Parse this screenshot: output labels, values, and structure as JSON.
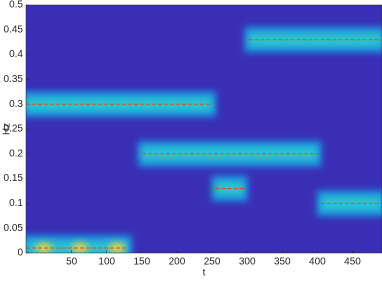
{
  "chart_data": {
    "type": "line",
    "x_label": "t",
    "y_label": "Hz",
    "xlim": [
      -15,
      492
    ],
    "ylim": [
      0,
      0.5
    ],
    "xticks": [
      50,
      100,
      150,
      200,
      250,
      300,
      350,
      400,
      450
    ],
    "yticks": [
      0,
      0.05,
      0.1,
      0.15,
      0.2,
      0.25,
      0.3,
      0.35,
      0.4,
      0.45,
      0.5
    ],
    "series": [
      {
        "color": "#d95319",
        "x": [
          -15,
          250
        ],
        "values": [
          0.3,
          0.3
        ]
      },
      {
        "color": "#d95319",
        "x": [
          -15,
          130
        ],
        "values": [
          0.01,
          0.01
        ]
      },
      {
        "color": "#d95319",
        "x": [
          150,
          400
        ],
        "values": [
          0.2,
          0.2
        ]
      },
      {
        "color": "#d95319",
        "x": [
          255,
          295
        ],
        "values": [
          0.13,
          0.13
        ]
      },
      {
        "color": "#d95319",
        "x": [
          302,
          492
        ],
        "values": [
          0.43,
          0.43
        ]
      },
      {
        "color": "#d95319",
        "x": [
          405,
          492
        ],
        "values": [
          0.1,
          0.1
        ]
      }
    ]
  }
}
